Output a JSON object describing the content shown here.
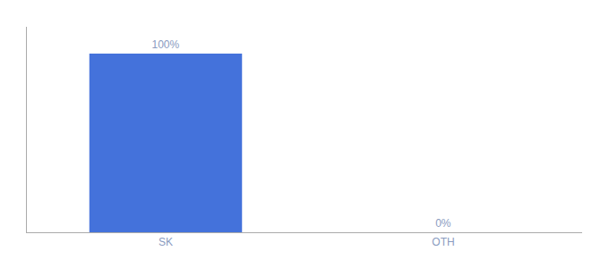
{
  "chart_data": {
    "type": "bar",
    "categories": [
      "SK",
      "OTH"
    ],
    "values": [
      100,
      0
    ],
    "value_labels": [
      "100%",
      "0%"
    ],
    "data_labels": true,
    "color": "#4472db",
    "ylim": [
      0,
      115
    ],
    "tick_labels": "x",
    "grid": false
  }
}
